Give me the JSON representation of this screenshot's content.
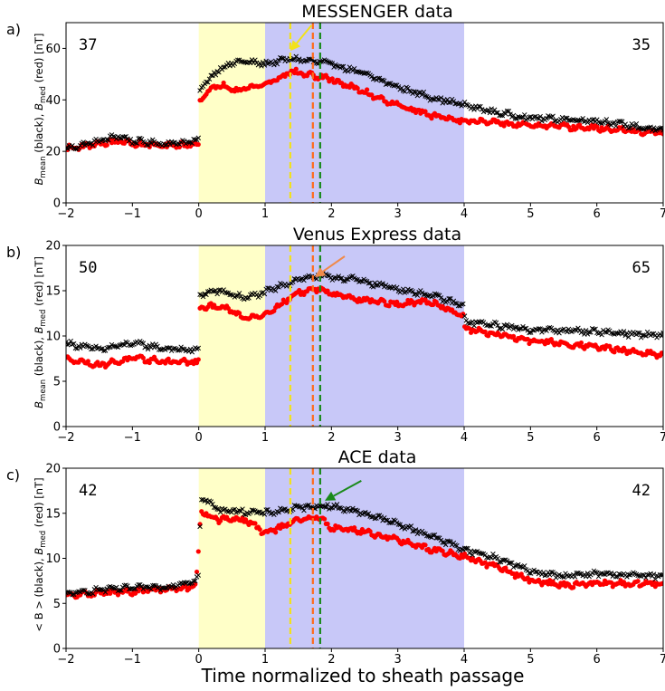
{
  "chart_data": [
    {
      "type": "scatter",
      "panel_label": "a)",
      "title": "MESSENGER data",
      "ylabel": "B_mean (black), B_med (red)  [nT]",
      "ylabel_parts": {
        "a": "B",
        "a_sub": "mean",
        "b": " (black), ",
        "c": "B",
        "c_sub": "med",
        "d": " (red)  [nT]"
      },
      "xlim": [
        -2,
        7
      ],
      "ylim": [
        0,
        70
      ],
      "xticks": [
        "−2",
        "−1",
        "0",
        "1",
        "2",
        "3",
        "4",
        "5",
        "6",
        "7"
      ],
      "yticks": [
        {
          "value": 0,
          "label": "0"
        },
        {
          "value": 20,
          "label": "20"
        },
        {
          "value": 40,
          "label": "40"
        },
        {
          "value": 60,
          "label": "60"
        }
      ],
      "count_left": "37",
      "count_right": "35",
      "shaded_regions": [
        {
          "from": 0,
          "to": 1,
          "color": "#ffffc8"
        },
        {
          "from": 1,
          "to": 4,
          "color": "#c8c8f8"
        }
      ],
      "vlines": [
        {
          "x": 1.38,
          "color": "#f2e21a"
        },
        {
          "x": 1.72,
          "color": "#ff6a1a"
        },
        {
          "x": 1.83,
          "color": "#1a8a1a"
        }
      ],
      "arrow": {
        "from": [
          1.7,
          69
        ],
        "to": [
          1.38,
          59
        ],
        "color": "#f2e21a"
      },
      "series": [
        {
          "name": "B_mean",
          "color": "#000000",
          "marker": "x",
          "x": [
            -2,
            -1.5,
            -1.2,
            -1,
            -0.5,
            0,
            0.01,
            0.3,
            0.6,
            1,
            1.4,
            2,
            2.5,
            3,
            3.5,
            4,
            4.5,
            5,
            6,
            7
          ],
          "y": [
            21,
            24,
            26,
            24,
            23,
            24,
            44,
            52,
            55,
            54,
            56,
            54,
            50,
            45,
            41,
            38,
            35,
            33,
            32,
            28
          ]
        },
        {
          "name": "B_med",
          "color": "#ff0000",
          "marker": "o",
          "x": [
            -2,
            -1.5,
            -1.2,
            -1,
            -0.5,
            0,
            0.01,
            0.3,
            0.6,
            1,
            1.4,
            2,
            2.5,
            3,
            3.5,
            4,
            4.5,
            5,
            6,
            7
          ],
          "y": [
            21,
            23,
            24,
            23,
            22,
            23,
            40,
            46,
            44,
            46,
            51,
            48,
            43,
            38,
            34,
            32,
            31,
            30,
            29,
            27
          ]
        }
      ]
    },
    {
      "type": "scatter",
      "panel_label": "b)",
      "title": "Venus Express data",
      "ylabel": "B_mean (black), B_med (red)  [nT]",
      "ylabel_parts": {
        "a": "B",
        "a_sub": "mean",
        "b": " (black), ",
        "c": "B",
        "c_sub": "med",
        "d": " (red)  [nT]"
      },
      "xlim": [
        -2,
        7
      ],
      "ylim": [
        0,
        20
      ],
      "xticks": [
        "−2",
        "−1",
        "0",
        "1",
        "2",
        "3",
        "4",
        "5",
        "6",
        "7"
      ],
      "yticks": [
        {
          "value": 0,
          "label": "0"
        },
        {
          "value": 5,
          "label": "5"
        },
        {
          "value": 10,
          "label": "10"
        },
        {
          "value": 15,
          "label": "15"
        },
        {
          "value": 20,
          "label": "20"
        }
      ],
      "count_left": "50",
      "count_right": "65",
      "shaded_regions": [
        {
          "from": 0,
          "to": 1,
          "color": "#ffffc8"
        },
        {
          "from": 1,
          "to": 4,
          "color": "#c8c8f8"
        }
      ],
      "vlines": [
        {
          "x": 1.38,
          "color": "#f2e21a"
        },
        {
          "x": 1.72,
          "color": "#ff6a1a"
        },
        {
          "x": 1.83,
          "color": "#1a8a1a"
        }
      ],
      "arrow": {
        "from": [
          2.2,
          18.8
        ],
        "to": [
          1.75,
          16.5
        ],
        "color": "#f08a4a"
      },
      "series": [
        {
          "name": "B_mean",
          "color": "#000000",
          "marker": "x",
          "x": [
            -2,
            -1.5,
            -1,
            -0.5,
            0,
            0.01,
            0.3,
            0.7,
            1,
            1.5,
            1.8,
            2.3,
            3,
            3.5,
            4,
            4.01,
            5,
            6,
            7
          ],
          "y": [
            9.2,
            8.5,
            9.2,
            8.6,
            8.4,
            14.6,
            15.0,
            14.2,
            14.8,
            16.3,
            16.6,
            16.3,
            15.2,
            14.5,
            13.3,
            11.6,
            10.7,
            10.5,
            10.0
          ]
        },
        {
          "name": "B_med",
          "color": "#ff0000",
          "marker": "o",
          "x": [
            -2,
            -1.5,
            -1,
            -0.5,
            0,
            0.01,
            0.3,
            0.7,
            1,
            1.5,
            1.8,
            2.3,
            3,
            3.5,
            4,
            4.01,
            5,
            6,
            7
          ],
          "y": [
            7.5,
            6.8,
            7.5,
            7.2,
            7.1,
            13.0,
            13.4,
            12.0,
            12.4,
            14.8,
            15.2,
            14.2,
            13.5,
            13.8,
            12.2,
            10.8,
            9.5,
            8.8,
            7.8
          ]
        }
      ]
    },
    {
      "type": "scatter",
      "panel_label": "c)",
      "title": "ACE data",
      "ylabel": "<B> (black), B_med (red)  [nT]",
      "ylabel_parts": {
        "a": "< B >",
        "a_sub": "",
        "b": " (black), ",
        "c": "B",
        "c_sub": "med",
        "d": " (red)  [nT]"
      },
      "xlim": [
        -2,
        7
      ],
      "ylim": [
        0,
        20
      ],
      "xticks": [
        "−2",
        "−1",
        "0",
        "1",
        "2",
        "3",
        "4",
        "5",
        "6",
        "7"
      ],
      "yticks": [
        {
          "value": 0,
          "label": "0"
        },
        {
          "value": 5,
          "label": "5"
        },
        {
          "value": 10,
          "label": "10"
        },
        {
          "value": 15,
          "label": "15"
        },
        {
          "value": 20,
          "label": "20"
        }
      ],
      "count_left": "42",
      "count_right": "42",
      "xlabel": "Time normalized to sheath passage",
      "shaded_regions": [
        {
          "from": 0,
          "to": 1,
          "color": "#ffffc8"
        },
        {
          "from": 1,
          "to": 4,
          "color": "#c8c8f8"
        }
      ],
      "vlines": [
        {
          "x": 1.38,
          "color": "#f2e21a"
        },
        {
          "x": 1.72,
          "color": "#ff6a1a"
        },
        {
          "x": 1.83,
          "color": "#1a8a1a"
        }
      ],
      "arrow": {
        "from": [
          2.45,
          18.6
        ],
        "to": [
          1.9,
          16.4
        ],
        "color": "#1a8a1a"
      },
      "series": [
        {
          "name": "<B>",
          "color": "#000000",
          "marker": "x",
          "x": [
            -2,
            -1.5,
            -1,
            -0.5,
            -0.05,
            0,
            0.03,
            0.3,
            0.7,
            1,
            1.5,
            1.8,
            2,
            2.5,
            3,
            3.5,
            4,
            4.5,
            5,
            5.5,
            6,
            7
          ],
          "y": [
            6.0,
            6.5,
            6.7,
            6.8,
            7.6,
            8.0,
            16.8,
            15.4,
            15.2,
            15.0,
            15.6,
            15.8,
            15.8,
            15.0,
            13.8,
            12.5,
            11.0,
            10.0,
            8.6,
            8.0,
            8.3,
            8.0
          ]
        },
        {
          "name": "B_med",
          "color": "#ff0000",
          "marker": "o",
          "x": [
            -2,
            -1.5,
            -1,
            -0.5,
            -0.05,
            0,
            0.03,
            0.3,
            0.7,
            1,
            1.5,
            1.8,
            2,
            2.5,
            3,
            3.5,
            4,
            4.5,
            5,
            5.5,
            6,
            7
          ],
          "y": [
            5.8,
            6.2,
            6.3,
            6.6,
            6.8,
            11.0,
            15.2,
            14.3,
            14.3,
            12.8,
            14.2,
            14.6,
            13.4,
            13.0,
            12.0,
            11.0,
            10.2,
            9.0,
            7.6,
            7.0,
            7.2,
            7.2
          ]
        }
      ]
    }
  ]
}
